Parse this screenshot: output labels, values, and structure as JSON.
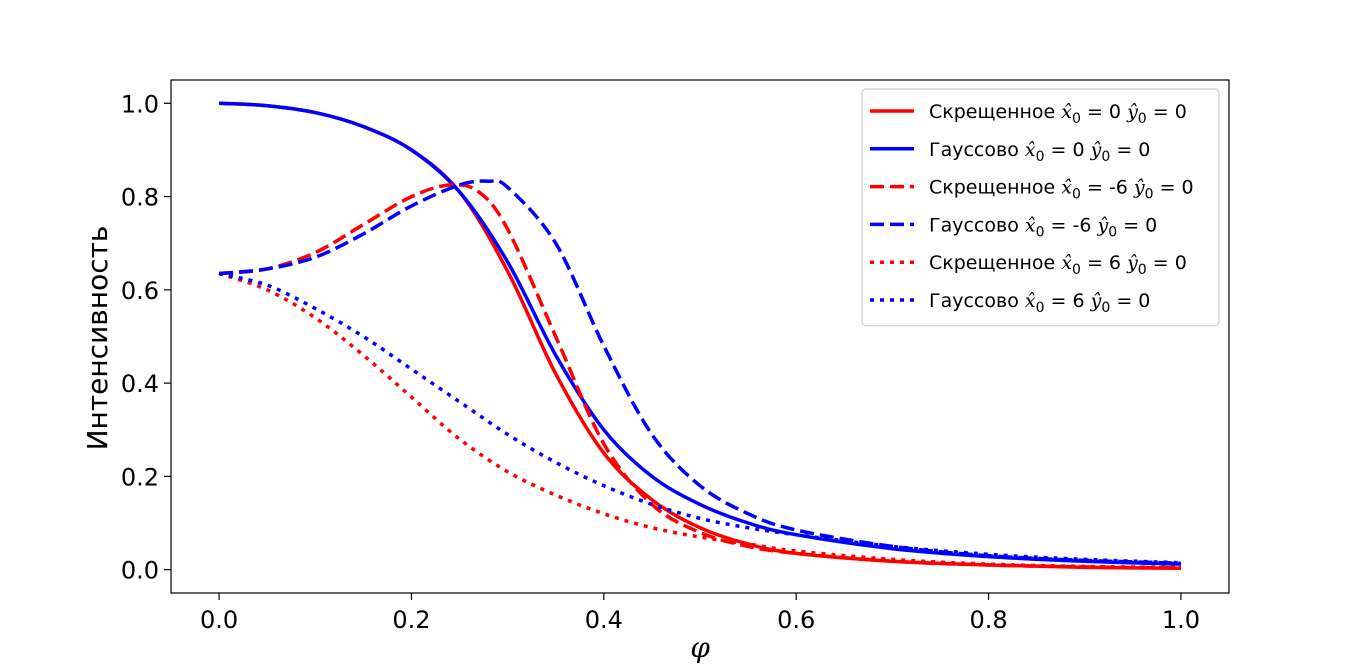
{
  "chart_data": {
    "type": "line",
    "title": "",
    "xlabel": "φ",
    "ylabel": "Интенсивность",
    "xlim": [
      -0.05,
      1.05
    ],
    "ylim": [
      -0.05,
      1.05
    ],
    "xticks": [
      "0.0",
      "0.2",
      "0.4",
      "0.6",
      "0.8",
      "1.0"
    ],
    "yticks": [
      "0.0",
      "0.2",
      "0.4",
      "0.6",
      "0.8",
      "1.0"
    ],
    "grid": false,
    "legend_position": "top-right",
    "series": [
      {
        "name": "Скрещенное x̂0 = 0 ŷ0 = 0",
        "legend": {
          "prefix": "Скрещенное",
          "x0": "0",
          "y0": "0"
        },
        "color": "#ff0000",
        "style": "solid",
        "x": [
          0.0,
          0.05,
          0.1,
          0.15,
          0.2,
          0.25,
          0.3,
          0.35,
          0.4,
          0.45,
          0.5,
          0.55,
          0.6,
          0.7,
          0.8,
          0.9,
          1.0
        ],
        "y": [
          1.0,
          0.995,
          0.98,
          0.95,
          0.9,
          0.81,
          0.64,
          0.42,
          0.25,
          0.15,
          0.09,
          0.055,
          0.035,
          0.018,
          0.01,
          0.005,
          0.003
        ]
      },
      {
        "name": "Гауссово x̂0 = 0 ŷ0 = 0",
        "legend": {
          "prefix": "Гауссово",
          "x0": "0",
          "y0": "0"
        },
        "color": "#0000ff",
        "style": "solid",
        "x": [
          0.0,
          0.05,
          0.1,
          0.15,
          0.2,
          0.25,
          0.3,
          0.35,
          0.4,
          0.45,
          0.5,
          0.55,
          0.6,
          0.7,
          0.8,
          0.9,
          1.0
        ],
        "y": [
          1.0,
          0.995,
          0.98,
          0.95,
          0.9,
          0.81,
          0.66,
          0.46,
          0.3,
          0.2,
          0.14,
          0.1,
          0.075,
          0.045,
          0.028,
          0.018,
          0.012
        ]
      },
      {
        "name": "Скрещенное x̂0 = -6 ŷ0 = 0",
        "legend": {
          "prefix": "Скрещенное",
          "x0": "-6",
          "y0": "0"
        },
        "color": "#ff0000",
        "style": "dashed",
        "x": [
          0.0,
          0.05,
          0.1,
          0.15,
          0.2,
          0.24,
          0.27,
          0.3,
          0.35,
          0.4,
          0.45,
          0.5,
          0.55,
          0.6,
          0.7,
          0.8,
          0.9,
          1.0
        ],
        "y": [
          0.635,
          0.645,
          0.68,
          0.74,
          0.8,
          0.825,
          0.81,
          0.73,
          0.5,
          0.27,
          0.14,
          0.08,
          0.05,
          0.035,
          0.018,
          0.01,
          0.006,
          0.004
        ]
      },
      {
        "name": "Гауссово x̂0 = -6 ŷ0 = 0",
        "legend": {
          "prefix": "Гауссово",
          "x0": "-6",
          "y0": "0"
        },
        "color": "#0000ff",
        "style": "dashed",
        "x": [
          0.0,
          0.05,
          0.1,
          0.15,
          0.2,
          0.25,
          0.28,
          0.3,
          0.35,
          0.4,
          0.45,
          0.5,
          0.55,
          0.6,
          0.7,
          0.8,
          0.9,
          1.0
        ],
        "y": [
          0.635,
          0.645,
          0.67,
          0.72,
          0.78,
          0.825,
          0.833,
          0.82,
          0.7,
          0.48,
          0.29,
          0.18,
          0.12,
          0.085,
          0.05,
          0.03,
          0.02,
          0.014
        ]
      },
      {
        "name": "Скрещенное x̂0 = 6 ŷ0 = 0",
        "legend": {
          "prefix": "Скрещенное",
          "x0": "6",
          "y0": "0"
        },
        "color": "#ff0000",
        "style": "dotted",
        "x": [
          0.0,
          0.05,
          0.1,
          0.15,
          0.2,
          0.25,
          0.3,
          0.35,
          0.4,
          0.45,
          0.5,
          0.55,
          0.6,
          0.7,
          0.8,
          0.9,
          1.0
        ],
        "y": [
          0.635,
          0.6,
          0.54,
          0.46,
          0.37,
          0.28,
          0.21,
          0.16,
          0.12,
          0.09,
          0.07,
          0.055,
          0.04,
          0.022,
          0.012,
          0.007,
          0.005
        ]
      },
      {
        "name": "Гауссово x̂0 = 6 ŷ0 = 0",
        "legend": {
          "prefix": "Гауссово",
          "x0": "6",
          "y0": "0"
        },
        "color": "#0000ff",
        "style": "dotted",
        "x": [
          0.0,
          0.05,
          0.1,
          0.15,
          0.2,
          0.25,
          0.3,
          0.35,
          0.4,
          0.45,
          0.5,
          0.55,
          0.6,
          0.7,
          0.8,
          0.9,
          1.0
        ],
        "y": [
          0.635,
          0.61,
          0.56,
          0.5,
          0.43,
          0.36,
          0.29,
          0.23,
          0.18,
          0.14,
          0.11,
          0.09,
          0.075,
          0.05,
          0.033,
          0.022,
          0.015
        ]
      }
    ]
  }
}
